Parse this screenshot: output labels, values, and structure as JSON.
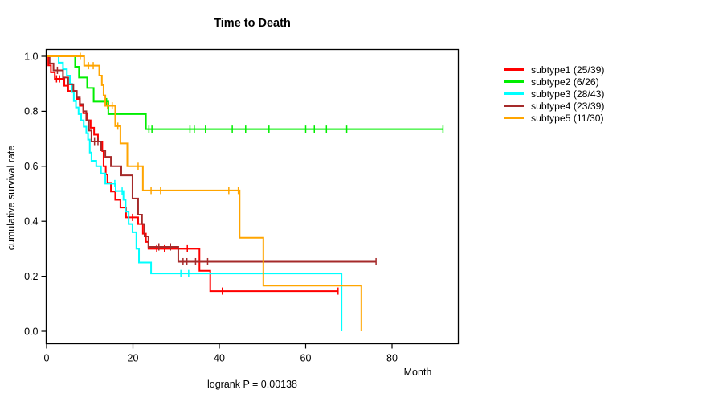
{
  "title": "Time to Death",
  "footer": {
    "text": "logrank P = 0.00138"
  },
  "chart_data": {
    "type": "line",
    "variant": "kaplan-meier-step",
    "title": "Time to Death",
    "xlabel": "Month",
    "ylabel": "cumulative survival rate",
    "xlim": [
      0,
      95
    ],
    "ylim": [
      0.0,
      1.0
    ],
    "grid": false,
    "legend_position": "right-outside",
    "x_axis": {
      "ticks": [
        0,
        20,
        40,
        60,
        80
      ],
      "tick_labels": [
        "0",
        "20",
        "40",
        "60",
        "80"
      ]
    },
    "y_axis": {
      "ticks": [
        0.0,
        0.2,
        0.4,
        0.6,
        0.8,
        1.0
      ],
      "tick_labels": [
        "0.0",
        "0.2",
        "0.4",
        "0.6",
        "0.8",
        "1.0"
      ]
    },
    "series": [
      {
        "name": "subtype1",
        "legend": "subtype1 (25/39)",
        "events_total": "25/39",
        "color": "#ff0000",
        "end_month": 67.5,
        "steps": [
          [
            0,
            1.0
          ],
          [
            0.4,
            0.967
          ],
          [
            1.0,
            0.942
          ],
          [
            1.9,
            0.918
          ],
          [
            4.1,
            0.893
          ],
          [
            5.0,
            0.874
          ],
          [
            6.9,
            0.845
          ],
          [
            7.7,
            0.82
          ],
          [
            8.5,
            0.793
          ],
          [
            9.3,
            0.767
          ],
          [
            10.2,
            0.74
          ],
          [
            11.0,
            0.715
          ],
          [
            11.9,
            0.69
          ],
          [
            12.9,
            0.655
          ],
          [
            13.2,
            0.6
          ],
          [
            13.7,
            0.57
          ],
          [
            14.1,
            0.54
          ],
          [
            14.9,
            0.508
          ],
          [
            15.9,
            0.478
          ],
          [
            17.1,
            0.45
          ],
          [
            18.4,
            0.414
          ],
          [
            21.2,
            0.39
          ],
          [
            22.3,
            0.355
          ],
          [
            23.0,
            0.325
          ],
          [
            23.6,
            0.3
          ],
          [
            35.4,
            0.22
          ],
          [
            37.9,
            0.146
          ]
        ],
        "censors": [
          [
            2.3,
            0.918
          ],
          [
            3.0,
            0.918
          ],
          [
            19.9,
            0.414
          ],
          [
            25.5,
            0.3
          ],
          [
            27.3,
            0.3
          ],
          [
            32.6,
            0.3
          ],
          [
            40.7,
            0.146
          ],
          [
            67.5,
            0.146
          ]
        ]
      },
      {
        "name": "subtype2",
        "legend": "subtype2 (6/26)",
        "events_total": "6/26",
        "color": "#00ee00",
        "end_month": 91.8,
        "steps": [
          [
            0,
            1.0
          ],
          [
            6.6,
            0.962
          ],
          [
            7.5,
            0.923
          ],
          [
            9.4,
            0.885
          ],
          [
            10.9,
            0.835
          ],
          [
            14.3,
            0.79
          ],
          [
            23.0,
            0.735
          ]
        ],
        "censors": [
          [
            13.9,
            0.835
          ],
          [
            23.7,
            0.735
          ],
          [
            24.4,
            0.735
          ],
          [
            33.2,
            0.735
          ],
          [
            34.2,
            0.735
          ],
          [
            36.8,
            0.735
          ],
          [
            43.0,
            0.735
          ],
          [
            46.1,
            0.735
          ],
          [
            51.5,
            0.735
          ],
          [
            60.0,
            0.735
          ],
          [
            62.0,
            0.735
          ],
          [
            64.8,
            0.735
          ],
          [
            69.5,
            0.735
          ],
          [
            91.8,
            0.735
          ]
        ]
      },
      {
        "name": "subtype3",
        "legend": "subtype3 (28/43)",
        "events_total": "28/43",
        "color": "#00ffff",
        "end_month": 68.3,
        "steps": [
          [
            0,
            1.0
          ],
          [
            2.8,
            0.977
          ],
          [
            3.8,
            0.953
          ],
          [
            4.7,
            0.93
          ],
          [
            5.4,
            0.9
          ],
          [
            5.9,
            0.87
          ],
          [
            6.3,
            0.837
          ],
          [
            6.8,
            0.814
          ],
          [
            7.4,
            0.79
          ],
          [
            8.0,
            0.767
          ],
          [
            8.6,
            0.744
          ],
          [
            9.2,
            0.72
          ],
          [
            9.6,
            0.697
          ],
          [
            10.0,
            0.65
          ],
          [
            10.4,
            0.62
          ],
          [
            11.5,
            0.6
          ],
          [
            12.6,
            0.574
          ],
          [
            13.6,
            0.537
          ],
          [
            16.0,
            0.51
          ],
          [
            17.8,
            0.478
          ],
          [
            18.3,
            0.435
          ],
          [
            19.0,
            0.39
          ],
          [
            19.9,
            0.36
          ],
          [
            20.8,
            0.3
          ],
          [
            21.4,
            0.25
          ],
          [
            24.2,
            0.21
          ],
          [
            68.3,
            0.0
          ]
        ],
        "censors": [
          [
            15.8,
            0.537
          ],
          [
            17.5,
            0.51
          ],
          [
            31.1,
            0.21
          ],
          [
            32.9,
            0.21
          ]
        ]
      },
      {
        "name": "subtype4",
        "legend": "subtype4 (23/39)",
        "events_total": "23/39",
        "color": "#a52a2a",
        "end_month": 76.3,
        "steps": [
          [
            0,
            1.0
          ],
          [
            0.7,
            0.974
          ],
          [
            1.6,
            0.949
          ],
          [
            3.8,
            0.923
          ],
          [
            5.0,
            0.898
          ],
          [
            6.2,
            0.874
          ],
          [
            7.0,
            0.85
          ],
          [
            7.7,
            0.826
          ],
          [
            8.5,
            0.8
          ],
          [
            9.2,
            0.767
          ],
          [
            9.8,
            0.73
          ],
          [
            10.4,
            0.69
          ],
          [
            12.6,
            0.658
          ],
          [
            13.6,
            0.634
          ],
          [
            14.9,
            0.6
          ],
          [
            17.3,
            0.567
          ],
          [
            19.9,
            0.483
          ],
          [
            21.2,
            0.424
          ],
          [
            22.1,
            0.39
          ],
          [
            22.7,
            0.345
          ],
          [
            23.6,
            0.307
          ],
          [
            30.5,
            0.253
          ]
        ],
        "censors": [
          [
            2.5,
            0.949
          ],
          [
            11.1,
            0.69
          ],
          [
            11.9,
            0.69
          ],
          [
            26.0,
            0.307
          ],
          [
            28.7,
            0.307
          ],
          [
            31.6,
            0.253
          ],
          [
            32.5,
            0.253
          ],
          [
            34.5,
            0.253
          ],
          [
            37.3,
            0.253
          ],
          [
            76.3,
            0.253
          ]
        ]
      },
      {
        "name": "subtype5",
        "legend": "subtype5 (11/30)",
        "events_total": "11/30",
        "color": "#ffa500",
        "end_month": 72.9,
        "steps": [
          [
            0,
            1.0
          ],
          [
            8.7,
            0.966
          ],
          [
            12.2,
            0.93
          ],
          [
            12.8,
            0.895
          ],
          [
            13.2,
            0.858
          ],
          [
            13.6,
            0.82
          ],
          [
            15.9,
            0.746
          ],
          [
            17.1,
            0.683
          ],
          [
            18.7,
            0.6
          ],
          [
            22.3,
            0.512
          ],
          [
            44.7,
            0.34
          ],
          [
            50.2,
            0.166
          ],
          [
            72.9,
            0.0
          ]
        ],
        "censors": [
          [
            7.8,
            1.0
          ],
          [
            9.7,
            0.966
          ],
          [
            10.8,
            0.966
          ],
          [
            14.1,
            0.82
          ],
          [
            15.2,
            0.82
          ],
          [
            16.5,
            0.746
          ],
          [
            21.2,
            0.6
          ],
          [
            24.2,
            0.512
          ],
          [
            26.4,
            0.512
          ],
          [
            42.2,
            0.512
          ],
          [
            44.4,
            0.512
          ]
        ]
      }
    ]
  }
}
